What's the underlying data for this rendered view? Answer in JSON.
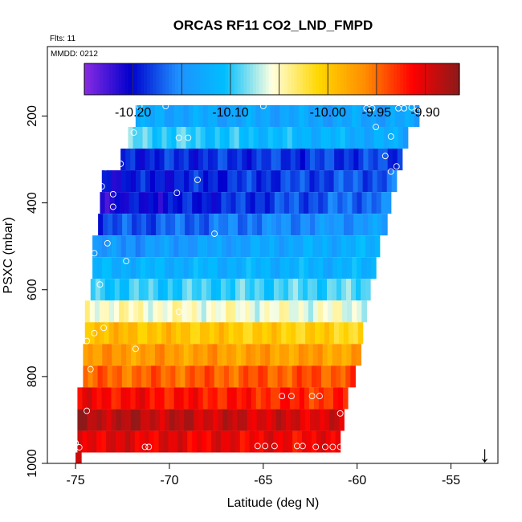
{
  "chart_data": {
    "type": "heatmap",
    "title": "ORCAS RF11 CO2_LND_FMPD",
    "subtitle_left": "Flts: 11",
    "inset_label": "MMDD: 0212",
    "xlabel": "Latitude (deg N)",
    "ylabel": "PSXC (mbar)",
    "xlim": [
      -76.5,
      -52.5
    ],
    "ylim": [
      1000,
      40
    ],
    "x_ticks": [
      -75,
      -70,
      -65,
      -60,
      -55
    ],
    "x_tick_labels": [
      "-75",
      "-70",
      "-65",
      "-60",
      "-55"
    ],
    "y_ticks": [
      200,
      400,
      600,
      800,
      1000
    ],
    "y_tick_labels": [
      "200",
      "400",
      "600",
      "800",
      "1000"
    ],
    "colorbar": {
      "min": -10.25,
      "max": -9.865,
      "tick_values": [
        -10.2,
        -10.1,
        -10.0,
        -9.95,
        -9.9
      ],
      "tick_labels": [
        "-10.20",
        "-10.10",
        "-10.00",
        "-9.95",
        "-9.90"
      ],
      "divider_values": [
        -10.2,
        -10.15,
        -10.1,
        -10.05,
        -10.0,
        -9.95,
        -9.9
      ],
      "colors": [
        "#8a2be2",
        "#0000cd",
        "#1e90ff",
        "#00bfff",
        "#ffffe0",
        "#ffd700",
        "#ff8c00",
        "#ff0000",
        "#8b1a1a"
      ]
    },
    "layers": [
      {
        "p_top": 175,
        "p_bot": 225,
        "lat_min": -71.8,
        "lat_max": -56.7,
        "val_south": -10.13,
        "val_north": -10.135
      },
      {
        "p_top": 225,
        "p_bot": 275,
        "lat_min": -72.2,
        "lat_max": -57.3,
        "val_south": -10.09,
        "val_north": -10.13
      },
      {
        "p_top": 275,
        "p_bot": 325,
        "lat_min": -72.6,
        "lat_max": -57.6,
        "val_south": -10.19,
        "val_north": -10.18
      },
      {
        "p_top": 325,
        "p_bot": 375,
        "lat_min": -73.6,
        "lat_max": -57.9,
        "val_south": -10.2,
        "val_north": -10.17
      },
      {
        "p_top": 375,
        "p_bot": 425,
        "lat_min": -73.7,
        "lat_max": -58.2,
        "val_south": -10.21,
        "val_north": -10.16
      },
      {
        "p_top": 425,
        "p_bot": 475,
        "lat_min": -73.8,
        "lat_max": -58.4,
        "val_south": -10.18,
        "val_north": -10.14
      },
      {
        "p_top": 475,
        "p_bot": 525,
        "lat_min": -74.1,
        "lat_max": -58.8,
        "val_south": -10.15,
        "val_north": -10.12
      },
      {
        "p_top": 525,
        "p_bot": 575,
        "lat_min": -74.1,
        "lat_max": -59.0,
        "val_south": -10.12,
        "val_north": -10.12
      },
      {
        "p_top": 575,
        "p_bot": 625,
        "lat_min": -74.2,
        "lat_max": -59.3,
        "val_south": -10.1,
        "val_north": -10.09
      },
      {
        "p_top": 625,
        "p_bot": 675,
        "lat_min": -74.5,
        "lat_max": -59.5,
        "val_south": -10.05,
        "val_north": -10.06
      },
      {
        "p_top": 675,
        "p_bot": 725,
        "lat_min": -74.5,
        "lat_max": -59.7,
        "val_south": -9.99,
        "val_north": -10.01
      },
      {
        "p_top": 725,
        "p_bot": 775,
        "lat_min": -74.6,
        "lat_max": -59.8,
        "val_south": -9.97,
        "val_north": -9.975
      },
      {
        "p_top": 775,
        "p_bot": 825,
        "lat_min": -74.6,
        "lat_max": -60.1,
        "val_south": -9.95,
        "val_north": -9.94
      },
      {
        "p_top": 825,
        "p_bot": 875,
        "lat_min": -74.9,
        "lat_max": -60.5,
        "val_south": -9.91,
        "val_north": -9.93
      },
      {
        "p_top": 875,
        "p_bot": 925,
        "lat_min": -74.9,
        "lat_max": -60.7,
        "val_south": -9.88,
        "val_north": -9.9
      },
      {
        "p_top": 925,
        "p_bot": 975,
        "lat_min": -74.9,
        "lat_max": -60.9,
        "val_south": -9.9,
        "val_north": -9.91
      },
      {
        "p_top": 975,
        "p_bot": 1000,
        "lat_min": -75.0,
        "lat_max": -74.7,
        "val_south": -9.88,
        "val_north": -9.88
      }
    ],
    "points": [
      [
        -71.6,
        177
      ],
      [
        -70.2,
        177
      ],
      [
        -65.0,
        177
      ],
      [
        -59.5,
        182
      ],
      [
        -59.2,
        182
      ],
      [
        -57.8,
        182
      ],
      [
        -57.5,
        182
      ],
      [
        -57.1,
        180
      ],
      [
        -56.8,
        178
      ],
      [
        -56.8,
        188
      ],
      [
        -71.9,
        238
      ],
      [
        -69.5,
        250
      ],
      [
        -69.0,
        250
      ],
      [
        -59.0,
        225
      ],
      [
        -58.2,
        247
      ],
      [
        -72.6,
        310
      ],
      [
        -58.5,
        292
      ],
      [
        -58.2,
        328
      ],
      [
        -57.9,
        316
      ],
      [
        -73.4,
        318
      ],
      [
        -73.6,
        362
      ],
      [
        -68.5,
        347
      ],
      [
        -73.0,
        380
      ],
      [
        -69.6,
        377
      ],
      [
        -73.0,
        409
      ],
      [
        -67.6,
        471
      ],
      [
        -73.3,
        493
      ],
      [
        -74.0,
        516
      ],
      [
        -72.3,
        534
      ],
      [
        -73.7,
        588
      ],
      [
        -69.5,
        651
      ],
      [
        -73.5,
        688
      ],
      [
        -74.0,
        700
      ],
      [
        -74.4,
        718
      ],
      [
        -71.8,
        736
      ],
      [
        -74.2,
        783
      ],
      [
        -64.0,
        845
      ],
      [
        -63.5,
        845
      ],
      [
        -62.4,
        845
      ],
      [
        -62.0,
        845
      ],
      [
        -60.9,
        885
      ],
      [
        -74.4,
        879
      ],
      [
        -75.4,
        954
      ],
      [
        -75.0,
        953
      ],
      [
        -74.8,
        963
      ],
      [
        -71.3,
        962
      ],
      [
        -71.1,
        962
      ],
      [
        -65.3,
        960
      ],
      [
        -64.9,
        960
      ],
      [
        -64.4,
        960
      ],
      [
        -63.2,
        960
      ],
      [
        -62.9,
        960
      ],
      [
        -62.2,
        962
      ],
      [
        -61.7,
        962
      ],
      [
        -61.3,
        962
      ],
      [
        -60.9,
        962
      ]
    ],
    "marker": {
      "lat": -53.2,
      "label": "↓"
    },
    "grid": false
  }
}
